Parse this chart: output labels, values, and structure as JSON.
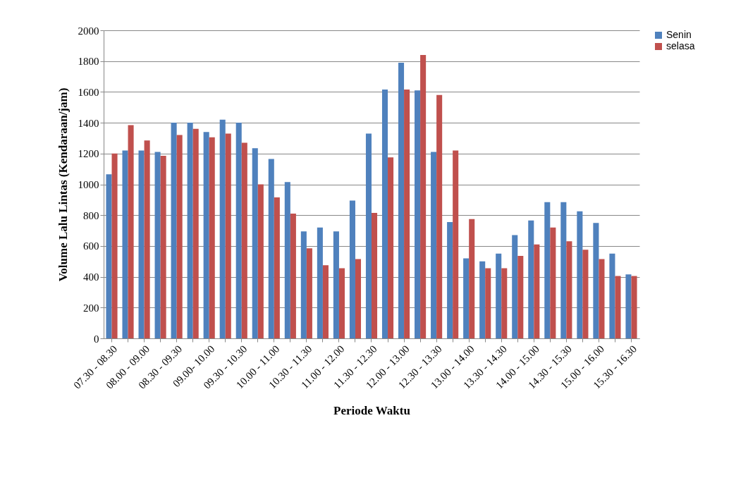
{
  "chart_data": {
    "type": "bar",
    "xlabel": "Periode Waktu",
    "ylabel": "Volume Lalu Lintas  (Kendaraan/jam)",
    "categories": [
      "07.30 - 08.30",
      null,
      "08.00 - 09.00",
      null,
      "08.30 - 09.30",
      null,
      "09.00- 10.00",
      null,
      "09.30 - 10.30",
      null,
      "10.00 - 11.00",
      null,
      "10.30 - 11.30",
      null,
      "11.00 - 12.00",
      null,
      "11.30 - 12.30",
      null,
      "12.00 - 13.00",
      null,
      "12.30 - 13.30",
      null,
      "13.00 - 14.00",
      null,
      "13.30 - 14.30",
      null,
      "14.00 - 15.00",
      null,
      "14.30 - 15.30",
      null,
      "15.00 - 16.00",
      null,
      "15.30 - 16.30"
    ],
    "series": [
      {
        "name": "Senin",
        "color": "#4f81bd",
        "values": [
          1065,
          1220,
          1220,
          1210,
          1400,
          1400,
          1340,
          1420,
          1400,
          1235,
          1165,
          1015,
          695,
          720,
          695,
          895,
          1330,
          1615,
          1790,
          1610,
          1210,
          755,
          520,
          500,
          550,
          670,
          765,
          885,
          885,
          825,
          750,
          550,
          415
        ]
      },
      {
        "name": "selasa",
        "color": "#c0504d",
        "values": [
          1200,
          1385,
          1285,
          1185,
          1320,
          1360,
          1305,
          1330,
          1270,
          1000,
          915,
          810,
          585,
          475,
          455,
          515,
          815,
          1175,
          1615,
          1840,
          1580,
          1220,
          775,
          455,
          455,
          535,
          610,
          720,
          630,
          575,
          515,
          405,
          405
        ]
      }
    ],
    "ylim": [
      0,
      2000
    ],
    "yticks": [
      0,
      200,
      400,
      600,
      800,
      1000,
      1200,
      1400,
      1600,
      1800,
      2000
    ],
    "grid": "y",
    "legend": "right"
  }
}
